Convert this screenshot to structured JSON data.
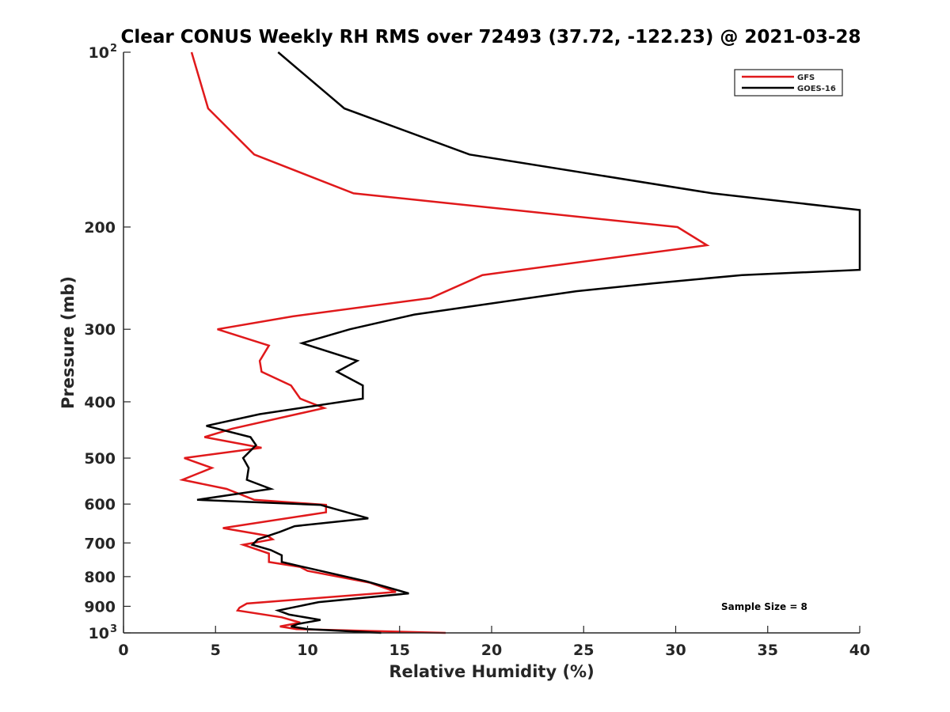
{
  "chart_data": {
    "type": "line",
    "title": "Clear CONUS Weekly RH RMS over 72493 (37.72, -122.23) @ 2021-03-28",
    "xlabel": "Relative Humidity (%)",
    "ylabel": "Pressure (mb)",
    "xlim": [
      0,
      40
    ],
    "ylim": [
      100,
      1000
    ],
    "y_scale": "log",
    "y_reversed": true,
    "grid": false,
    "legend_position": "top-right",
    "x_ticks": [
      0,
      5,
      10,
      15,
      20,
      25,
      30,
      35,
      40
    ],
    "x_tick_labels": [
      "0",
      "5",
      "10",
      "15",
      "20",
      "25",
      "30",
      "35",
      "40"
    ],
    "y_ticks": [
      100,
      200,
      300,
      400,
      500,
      600,
      700,
      800,
      900,
      1000
    ],
    "y_tick_labels": [
      {
        "base": "10",
        "exp": "2"
      },
      {
        "base": "200",
        "exp": ""
      },
      {
        "base": "300",
        "exp": ""
      },
      {
        "base": "400",
        "exp": ""
      },
      {
        "base": "500",
        "exp": ""
      },
      {
        "base": "600",
        "exp": ""
      },
      {
        "base": "700",
        "exp": ""
      },
      {
        "base": "800",
        "exp": ""
      },
      {
        "base": "900",
        "exp": ""
      },
      {
        "base": "10",
        "exp": "3"
      }
    ],
    "annotation": "Sample Size = 8",
    "series": [
      {
        "name": "GFS",
        "color": "#e0191b",
        "points": [
          [
            3.7,
            100
          ],
          [
            4.6,
            125
          ],
          [
            7.1,
            150
          ],
          [
            12.5,
            175
          ],
          [
            30.1,
            200
          ],
          [
            31.7,
            215
          ],
          [
            19.5,
            242
          ],
          [
            16.7,
            265
          ],
          [
            9.2,
            285
          ],
          [
            5.1,
            300
          ],
          [
            7.9,
            320
          ],
          [
            7.4,
            340
          ],
          [
            7.5,
            355
          ],
          [
            9.1,
            375
          ],
          [
            9.6,
            395
          ],
          [
            10.9,
            410
          ],
          [
            5.9,
            445
          ],
          [
            4.4,
            460
          ],
          [
            7.5,
            480
          ],
          [
            3.3,
            500
          ],
          [
            4.8,
            520
          ],
          [
            3.2,
            545
          ],
          [
            5.6,
            565
          ],
          [
            7.1,
            590
          ],
          [
            11.0,
            602
          ],
          [
            11.0,
            620
          ],
          [
            5.4,
            660
          ],
          [
            7.8,
            680
          ],
          [
            8.1,
            690
          ],
          [
            6.5,
            705
          ],
          [
            7.9,
            730
          ],
          [
            7.9,
            755
          ],
          [
            9.6,
            770
          ],
          [
            10.0,
            782
          ],
          [
            13.4,
            820
          ],
          [
            14.8,
            850
          ],
          [
            6.7,
            890
          ],
          [
            6.3,
            905
          ],
          [
            6.2,
            915
          ],
          [
            8.6,
            940
          ],
          [
            9.6,
            960
          ],
          [
            8.5,
            975
          ],
          [
            9.4,
            985
          ],
          [
            17.5,
            1000
          ]
        ]
      },
      {
        "name": "GOES-16",
        "color": "#000000",
        "points": [
          [
            8.4,
            100
          ],
          [
            12.0,
            125
          ],
          [
            18.8,
            150
          ],
          [
            32.0,
            175
          ],
          [
            40.0,
            187
          ],
          [
            40.0,
            237
          ],
          [
            33.6,
            242
          ],
          [
            28.8,
            250
          ],
          [
            24.6,
            258
          ],
          [
            15.8,
            283
          ],
          [
            12.3,
            300
          ],
          [
            9.7,
            317
          ],
          [
            12.7,
            340
          ],
          [
            11.6,
            355
          ],
          [
            13.0,
            375
          ],
          [
            13.0,
            395
          ],
          [
            7.4,
            420
          ],
          [
            4.5,
            440
          ],
          [
            6.9,
            460
          ],
          [
            7.2,
            475
          ],
          [
            6.5,
            500
          ],
          [
            6.8,
            520
          ],
          [
            6.7,
            545
          ],
          [
            8.0,
            565
          ],
          [
            4.0,
            590
          ],
          [
            10.7,
            602
          ],
          [
            13.3,
            635
          ],
          [
            9.3,
            655
          ],
          [
            8.5,
            670
          ],
          [
            7.3,
            690
          ],
          [
            7.0,
            705
          ],
          [
            8.0,
            720
          ],
          [
            8.6,
            735
          ],
          [
            8.6,
            755
          ],
          [
            13.2,
            815
          ],
          [
            15.5,
            855
          ],
          [
            10.6,
            885
          ],
          [
            8.4,
            915
          ],
          [
            9.0,
            930
          ],
          [
            10.7,
            950
          ],
          [
            9.5,
            965
          ],
          [
            9.1,
            975
          ],
          [
            10.0,
            985
          ],
          [
            14.0,
            1000
          ]
        ]
      }
    ]
  }
}
